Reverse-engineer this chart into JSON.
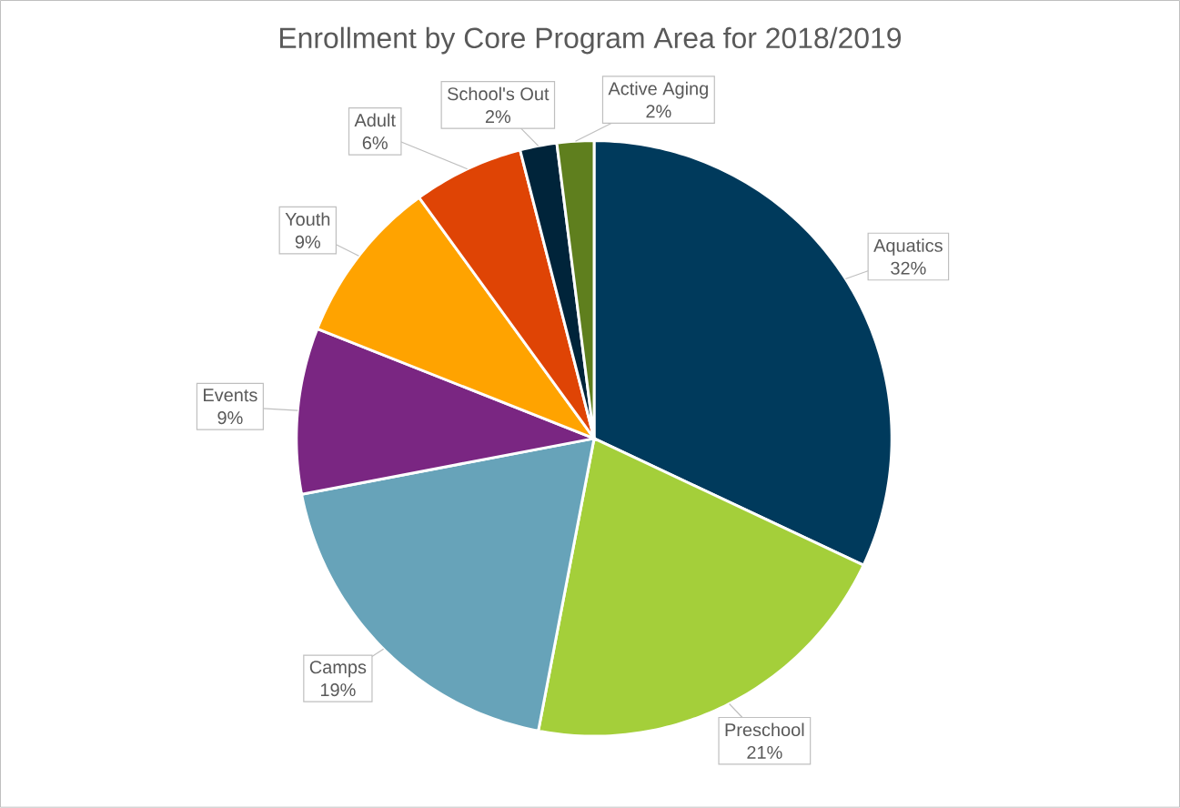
{
  "chart_data": {
    "type": "pie",
    "title": "Enrollment by Core Program Area for 2018/2019",
    "categories": [
      "Aquatics",
      "Preschool",
      "Camps",
      "Events",
      "Youth",
      "Adult",
      "School's Out",
      "Active Aging"
    ],
    "values": [
      32,
      21,
      19,
      9,
      9,
      6,
      2,
      2
    ],
    "value_labels": [
      "32%",
      "21%",
      "19%",
      "9%",
      "9%",
      "6%",
      "2%",
      "2%"
    ],
    "colors": [
      "#003a5c",
      "#a4cf3a",
      "#67a3b9",
      "#7a2682",
      "#ffa300",
      "#df4405",
      "#00243a",
      "#5f7f1e"
    ]
  }
}
